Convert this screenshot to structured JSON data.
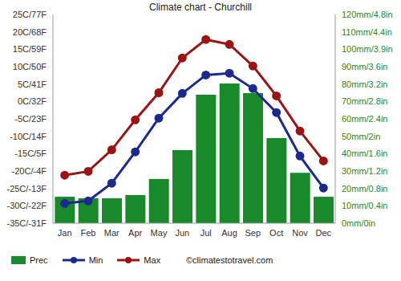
{
  "chart_data": {
    "type": "combo",
    "title": "Climate chart - Churchill",
    "annotations": [
      "©climatestotravel.com"
    ],
    "categories": [
      "Jan",
      "Feb",
      "Mar",
      "Apr",
      "May",
      "Jun",
      "Jul",
      "Aug",
      "Sep",
      "Oct",
      "Nov",
      "Dec"
    ],
    "series": [
      {
        "name": "Prec",
        "type": "bar",
        "axis": "y2",
        "color": "#198a2a",
        "values": [
          15.2,
          14.3,
          14.3,
          16.2,
          25.4,
          42,
          73.8,
          80.3,
          74.8,
          48.9,
          29,
          15.2
        ]
      },
      {
        "name": "Min",
        "type": "line",
        "marker": "circle",
        "color": "#1b2a8f",
        "values": [
          -29.3,
          -28.6,
          -23.5,
          -14.5,
          -4.8,
          2.3,
          7.6,
          8.1,
          3.7,
          -3.2,
          -15.7,
          -24.9
        ]
      },
      {
        "name": "Max",
        "type": "line",
        "marker": "circle",
        "color": "#9b1414",
        "values": [
          -21.2,
          -20.1,
          -13.9,
          -5.3,
          2.5,
          12.5,
          17.8,
          16.4,
          10.2,
          1.6,
          -8.5,
          -17.1
        ]
      }
    ],
    "ylim": [
      -35,
      25
    ],
    "yticks": [
      {
        "value": -35,
        "label": "-35C/-31F"
      },
      {
        "value": -30,
        "label": "-30C/-22F"
      },
      {
        "value": -25,
        "label": "-25C/-13F"
      },
      {
        "value": -20,
        "label": "-20C/-4F"
      },
      {
        "value": -15,
        "label": "-15C/5F"
      },
      {
        "value": -10,
        "label": "-10C/14F"
      },
      {
        "value": -5,
        "label": "-5C/23F"
      },
      {
        "value": 0,
        "label": "0C/32F"
      },
      {
        "value": 5,
        "label": "5C/41F"
      },
      {
        "value": 10,
        "label": "10C/50F"
      },
      {
        "value": 15,
        "label": "15C/59F"
      },
      {
        "value": 20,
        "label": "20C/68F"
      },
      {
        "value": 25,
        "label": "25C/77F"
      }
    ],
    "y2lim": [
      0,
      120
    ],
    "y2ticks": [
      {
        "value": 0,
        "label": "0mm/0in"
      },
      {
        "value": 10,
        "label": "10mm/0.4in"
      },
      {
        "value": 20,
        "label": "20mm/0.8in"
      },
      {
        "value": 30,
        "label": "30mm/1.2in"
      },
      {
        "value": 40,
        "label": "40mm/1.6in"
      },
      {
        "value": 50,
        "label": "50mm/2in"
      },
      {
        "value": 60,
        "label": "60mm/2.4in"
      },
      {
        "value": 70,
        "label": "70mm/2.8in"
      },
      {
        "value": 80,
        "label": "80mm/3.2in"
      },
      {
        "value": 90,
        "label": "90mm/3.6in"
      },
      {
        "value": 100,
        "label": "100mm/3.9in"
      },
      {
        "value": 110,
        "label": "110mm/4.4in"
      },
      {
        "value": 120,
        "label": "120mm/4.8in"
      }
    ],
    "grid": false,
    "legend": "bottom left"
  }
}
